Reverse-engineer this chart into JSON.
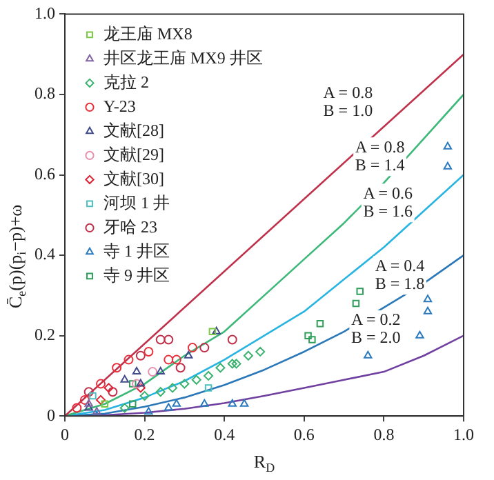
{
  "chart_data": {
    "type": "scatter",
    "xlabel": "R$_{D}$",
    "ylabel": "C̄$_{e}$(p)(p$_{i}$−p)+ω",
    "xlim": [
      0,
      1
    ],
    "ylim": [
      0,
      1
    ],
    "xticks": [
      0,
      0.2,
      0.4,
      0.6,
      0.8,
      {
        "value": 1,
        "label": "1.0"
      }
    ],
    "yticks": [
      0,
      0.2,
      0.4,
      0.6,
      0.8,
      {
        "value": 1,
        "label": "1.0"
      }
    ],
    "grid": false,
    "legend": "top left",
    "series": [
      {
        "name": "龙王庙 MX8",
        "color": "#7ac943",
        "marker": "square",
        "x": [
          0.37,
          0.1
        ],
        "values": [
          0.21,
          0.03
        ]
      },
      {
        "name": "井区龙王庙 MX9 井区",
        "color": "#8064a2",
        "marker": "triangle",
        "x": [
          0.06,
          0.08
        ],
        "values": [
          0.03,
          0.01
        ]
      },
      {
        "name": "克拉 2",
        "color": "#3cb371",
        "marker": "diamond",
        "x": [
          0.15,
          0.2,
          0.24,
          0.27,
          0.3,
          0.33,
          0.36,
          0.39,
          0.42,
          0.43,
          0.46,
          0.49
        ],
        "values": [
          0.02,
          0.05,
          0.06,
          0.07,
          0.08,
          0.09,
          0.1,
          0.12,
          0.13,
          0.13,
          0.15,
          0.16
        ]
      },
      {
        "name": "Y-23",
        "color": "#e8303c",
        "marker": "circle",
        "x": [
          0.13,
          0.16,
          0.21,
          0.26,
          0.28,
          0.32,
          0.09,
          0.05,
          0.03
        ],
        "values": [
          0.12,
          0.14,
          0.16,
          0.14,
          0.14,
          0.17,
          0.08,
          0.04,
          0.02
        ]
      },
      {
        "name": "文献[28]",
        "color": "#404a8c",
        "marker": "triangle",
        "x": [
          0.38,
          0.31,
          0.24,
          0.18,
          0.15,
          0.19,
          0.06
        ],
        "values": [
          0.21,
          0.15,
          0.11,
          0.11,
          0.09,
          0.08,
          0.02
        ]
      },
      {
        "name": "文献[29]",
        "color": "#e890b0",
        "marker": "circle",
        "x": [
          0.22,
          0.18
        ],
        "values": [
          0.11,
          0.08
        ]
      },
      {
        "name": "文献[30]",
        "color": "#e02030",
        "marker": "diamond",
        "x": [
          0.19,
          0.11,
          0.09
        ],
        "values": [
          0.07,
          0.07,
          0.04
        ]
      },
      {
        "name": "河坝 1 井",
        "color": "#4cc0c0",
        "marker": "square",
        "x": [
          0.36,
          0.07
        ],
        "values": [
          0.07,
          0.05
        ]
      },
      {
        "name": "牙哈 23",
        "color": "#c0304a",
        "marker": "circle",
        "x": [
          0.19,
          0.24,
          0.26,
          0.29,
          0.35,
          0.42,
          0.12,
          0.06
        ],
        "values": [
          0.15,
          0.19,
          0.19,
          0.12,
          0.17,
          0.19,
          0.06,
          0.06
        ]
      },
      {
        "name": "寺 1 井区",
        "color": "#2a7ac0",
        "marker": "triangle",
        "x": [
          0.21,
          0.26,
          0.28,
          0.35,
          0.42,
          0.45,
          0.08,
          0.76,
          0.89,
          0.91,
          0.91,
          0.96,
          0.96
        ],
        "values": [
          0.01,
          0.02,
          0.03,
          0.03,
          0.03,
          0.03,
          0.0,
          0.15,
          0.2,
          0.26,
          0.29,
          0.62,
          0.67
        ]
      },
      {
        "name": "寺 9 井区",
        "color": "#2e9e5a",
        "marker": "square",
        "x": [
          0.61,
          0.62,
          0.64,
          0.73,
          0.74,
          0.17,
          0.17
        ],
        "values": [
          0.2,
          0.19,
          0.23,
          0.28,
          0.31,
          0.03,
          0.08
        ]
      },
      {
        "type": "line",
        "color": "#c0304a",
        "marker": "none",
        "x": [
          0,
          1
        ],
        "values": [
          0,
          0.9
        ]
      },
      {
        "type": "line",
        "color": "#3cb878",
        "marker": "none",
        "x": [
          0,
          0.1,
          0.2,
          0.3,
          0.4,
          0.5,
          0.6,
          0.7,
          0.8,
          0.9,
          1
        ],
        "values": [
          0,
          0.03,
          0.08,
          0.15,
          0.21,
          0.3,
          0.39,
          0.48,
          0.58,
          0.69,
          0.8
        ]
      },
      {
        "type": "line",
        "color": "#28b4e0",
        "marker": "none",
        "x": [
          0,
          0.1,
          0.2,
          0.3,
          0.4,
          0.5,
          0.6,
          0.7,
          0.8,
          0.9,
          1
        ],
        "values": [
          0,
          0.015,
          0.046,
          0.087,
          0.14,
          0.2,
          0.26,
          0.34,
          0.42,
          0.51,
          0.6
        ]
      },
      {
        "type": "line",
        "color": "#2a78b8",
        "marker": "none",
        "x": [
          0,
          0.1,
          0.2,
          0.3,
          0.4,
          0.5,
          0.6,
          0.7,
          0.8,
          0.9,
          1
        ],
        "values": [
          0,
          0.006,
          0.023,
          0.046,
          0.077,
          0.115,
          0.16,
          0.21,
          0.27,
          0.33,
          0.4
        ]
      },
      {
        "type": "line",
        "color": "#7040a0",
        "marker": "none",
        "x": [
          0,
          0.1,
          0.2,
          0.3,
          0.4,
          0.5,
          0.6,
          0.7,
          0.8,
          0.9,
          1
        ],
        "values": [
          0,
          0.002,
          0.008,
          0.018,
          0.032,
          0.05,
          0.07,
          0.09,
          0.11,
          0.15,
          0.2
        ]
      }
    ],
    "annotations": [
      "A = 0.8\nB = 1.0",
      "A = 0.8\nB = 1.4",
      "A = 0.6\nB = 1.6",
      "A = 0.4\nB = 1.8",
      "A = 0.2\nB = 2.0"
    ]
  }
}
